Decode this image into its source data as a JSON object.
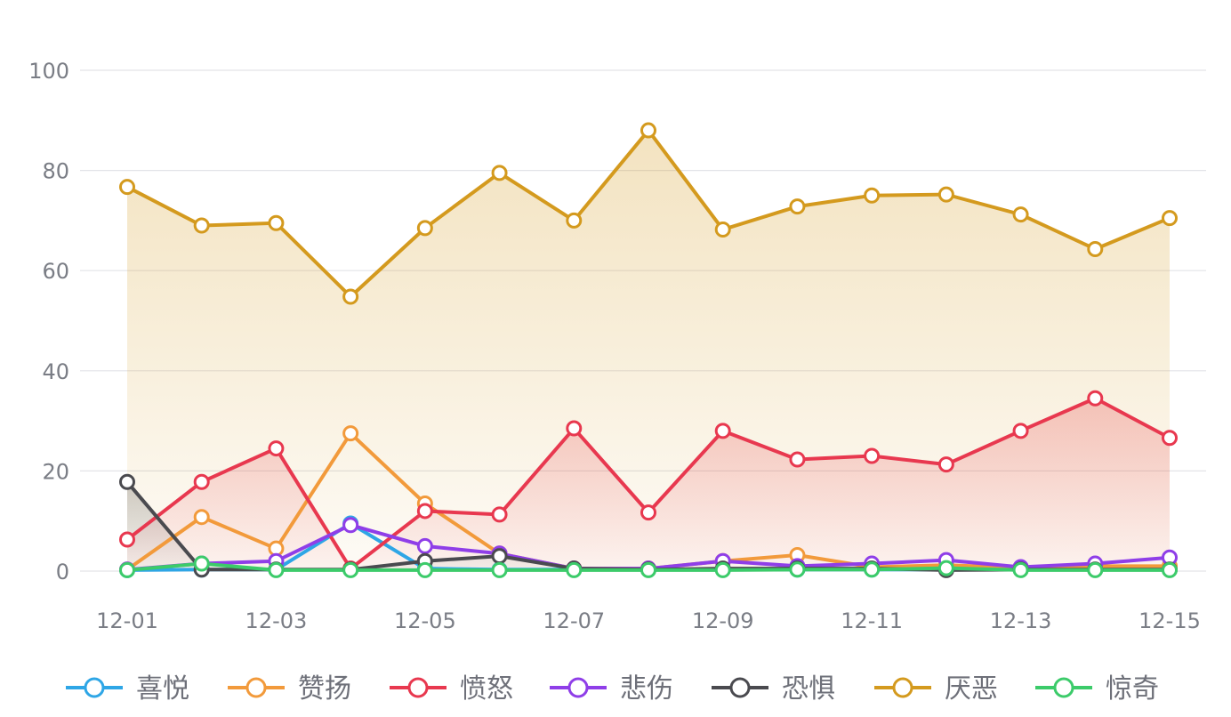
{
  "chart_data": {
    "type": "line",
    "title": "",
    "xlabel": "",
    "ylabel": "",
    "ylim": [
      0,
      100
    ],
    "y_ticks": [
      "0",
      "20",
      "40",
      "60",
      "80",
      "100"
    ],
    "categories": [
      "12-01",
      "12-02",
      "12-03",
      "12-04",
      "12-05",
      "12-06",
      "12-07",
      "12-08",
      "12-09",
      "12-10",
      "12-11",
      "12-12",
      "12-13",
      "12-14",
      "12-15"
    ],
    "x_tick_labels": [
      "12-01",
      "12-03",
      "12-05",
      "12-07",
      "12-09",
      "12-11",
      "12-13",
      "12-15"
    ],
    "grid": true,
    "legend_position": "bottom",
    "series": [
      {
        "name": "喜悦",
        "color": "#2ea6e6",
        "area": false,
        "values": [
          0.2,
          0.3,
          0.3,
          9.5,
          0.5,
          0.3,
          0.3,
          0.3,
          0.3,
          0.3,
          0.3,
          0.3,
          0.3,
          0.3,
          0.3
        ]
      },
      {
        "name": "赞扬",
        "color": "#f29a3b",
        "area": false,
        "values": [
          0.3,
          10.8,
          4.5,
          27.5,
          13.5,
          3.5,
          0.5,
          0.5,
          2.0,
          3.2,
          0.8,
          1.2,
          0.7,
          1.0,
          1.0
        ]
      },
      {
        "name": "愤怒",
        "color": "#e8384f",
        "area": true,
        "values": [
          6.3,
          17.8,
          24.5,
          0.5,
          12.0,
          11.3,
          28.5,
          11.7,
          28.0,
          22.3,
          23.0,
          21.3,
          28.0,
          34.5,
          26.6
        ]
      },
      {
        "name": "悲伤",
        "color": "#8f3ee8",
        "area": false,
        "values": [
          0.3,
          1.5,
          2.0,
          9.2,
          5.0,
          3.5,
          0.5,
          0.5,
          2.0,
          1.0,
          1.5,
          2.2,
          0.8,
          1.5,
          2.7
        ]
      },
      {
        "name": "恐惧",
        "color": "#4a4a4f",
        "area": true,
        "values": [
          17.8,
          0.3,
          0.3,
          0.3,
          2.0,
          3.0,
          0.5,
          0.3,
          0.5,
          0.5,
          0.5,
          0.2,
          0.3,
          0.3,
          0.3
        ]
      },
      {
        "name": "厌恶",
        "color": "#d49a1e",
        "area": true,
        "values": [
          76.7,
          69.0,
          69.5,
          54.8,
          68.5,
          79.5,
          70.0,
          88.0,
          68.2,
          72.8,
          75.0,
          75.2,
          71.2,
          64.3,
          70.5
        ]
      },
      {
        "name": "惊奇",
        "color": "#3ccb6a",
        "area": false,
        "values": [
          0.2,
          1.5,
          0.2,
          0.2,
          0.2,
          0.2,
          0.2,
          0.2,
          0.2,
          0.3,
          0.3,
          0.6,
          0.2,
          0.2,
          0.2
        ]
      }
    ]
  }
}
